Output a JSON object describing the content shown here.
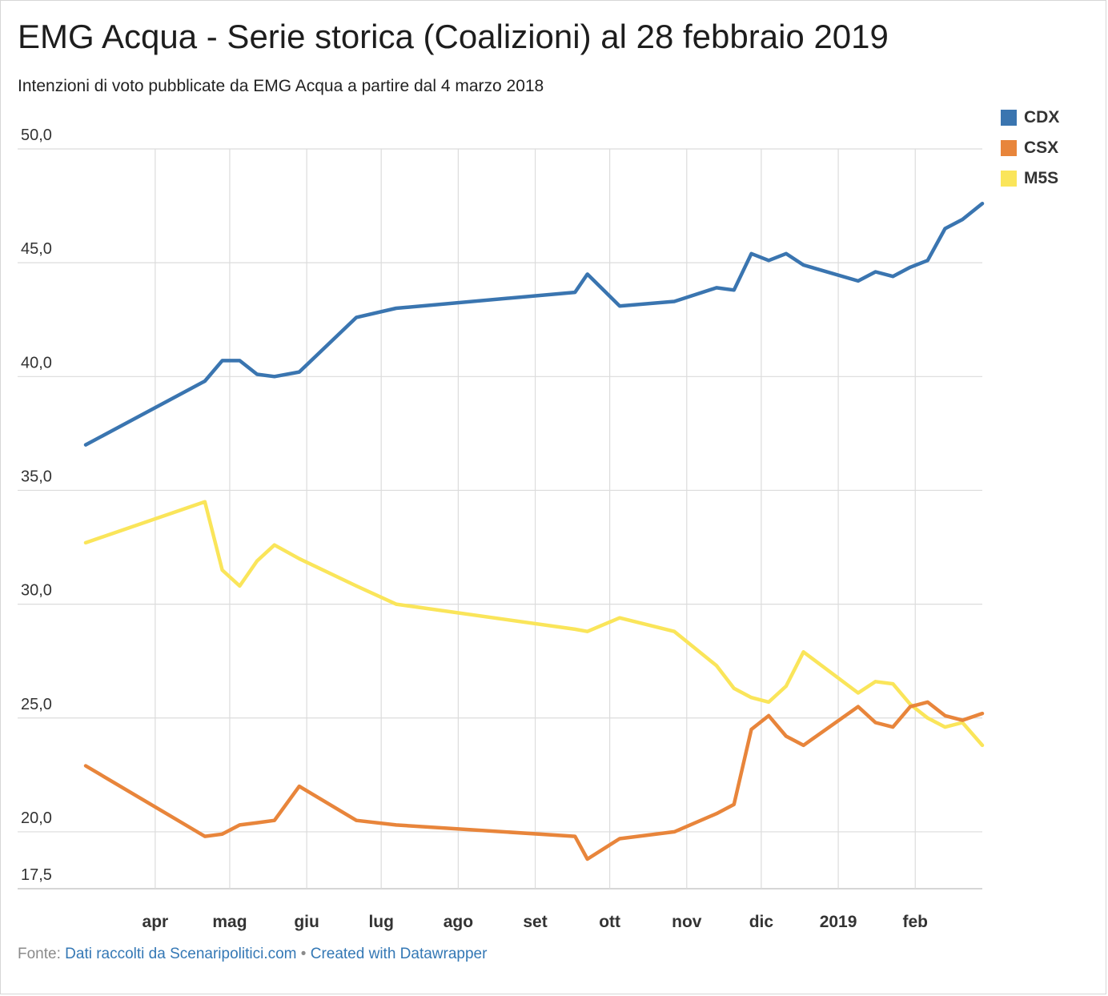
{
  "title": "EMG Acqua - Serie storica (Coalizioni) al 28 febbraio 2019",
  "subtitle": "Intenzioni di voto pubblicate da EMG Acqua a partire dal 4 marzo 2018",
  "footer": {
    "source_prefix": "Fonte:",
    "source_link": "Dati raccolti da Scenaripolitici.com",
    "separator": "•",
    "credit": "Created with Datawrapper"
  },
  "chart_data": {
    "type": "line",
    "y_ticks": [
      50.0,
      45.0,
      40.0,
      35.0,
      30.0,
      25.0,
      20.0,
      17.5
    ],
    "y_tick_labels": [
      "50,0",
      "45,0",
      "40,0",
      "35,0",
      "30,0",
      "25,0",
      "20,0",
      "17,5"
    ],
    "ylim": [
      17.5,
      50.0
    ],
    "x_ticks": [
      "2018-04-01",
      "2018-05-01",
      "2018-06-01",
      "2018-07-01",
      "2018-08-01",
      "2018-09-01",
      "2018-10-01",
      "2018-11-01",
      "2018-12-01",
      "2019-01-01",
      "2019-02-01"
    ],
    "x_tick_labels": [
      "apr",
      "mag",
      "giu",
      "lug",
      "ago",
      "set",
      "ott",
      "nov",
      "dic",
      "2019",
      "feb"
    ],
    "xlim": [
      "2018-03-04",
      "2019-02-28"
    ],
    "grid": true,
    "legend_position": "top-right",
    "series": [
      {
        "name": "CDX",
        "color": "#3a75b0",
        "x": [
          "2018-03-04",
          "2018-04-21",
          "2018-04-28",
          "2018-05-05",
          "2018-05-12",
          "2018-05-19",
          "2018-05-29",
          "2018-06-21",
          "2018-07-07",
          "2018-09-17",
          "2018-09-22",
          "2018-10-05",
          "2018-10-27",
          "2018-11-13",
          "2018-11-20",
          "2018-11-27",
          "2018-12-04",
          "2018-12-11",
          "2018-12-18",
          "2019-01-09",
          "2019-01-16",
          "2019-01-23",
          "2019-01-30",
          "2019-02-06",
          "2019-02-13",
          "2019-02-20",
          "2019-02-28"
        ],
        "y": [
          37.0,
          39.8,
          40.7,
          40.7,
          40.1,
          40.0,
          40.2,
          42.6,
          43.0,
          43.7,
          44.5,
          43.1,
          43.3,
          43.9,
          43.8,
          45.4,
          45.1,
          45.4,
          44.9,
          44.2,
          44.6,
          44.4,
          44.8,
          45.1,
          46.5,
          46.9,
          47.6
        ]
      },
      {
        "name": "CSX",
        "color": "#e8853b",
        "x": [
          "2018-03-04",
          "2018-04-21",
          "2018-04-28",
          "2018-05-05",
          "2018-05-12",
          "2018-05-19",
          "2018-05-29",
          "2018-06-21",
          "2018-07-07",
          "2018-09-17",
          "2018-09-22",
          "2018-10-05",
          "2018-10-27",
          "2018-11-13",
          "2018-11-20",
          "2018-11-27",
          "2018-12-04",
          "2018-12-11",
          "2018-12-18",
          "2019-01-09",
          "2019-01-16",
          "2019-01-23",
          "2019-01-30",
          "2019-02-06",
          "2019-02-13",
          "2019-02-20",
          "2019-02-28"
        ],
        "y": [
          22.9,
          19.8,
          19.9,
          20.3,
          20.4,
          20.5,
          22.0,
          20.5,
          20.3,
          19.8,
          18.8,
          19.7,
          20.0,
          20.8,
          21.2,
          24.5,
          25.1,
          24.2,
          23.8,
          25.5,
          24.8,
          24.6,
          25.5,
          25.7,
          25.1,
          24.9,
          25.2
        ]
      },
      {
        "name": "M5S",
        "color": "#fae55a",
        "x": [
          "2018-03-04",
          "2018-04-21",
          "2018-04-28",
          "2018-05-05",
          "2018-05-12",
          "2018-05-19",
          "2018-05-29",
          "2018-06-21",
          "2018-07-07",
          "2018-09-17",
          "2018-09-22",
          "2018-10-05",
          "2018-10-27",
          "2018-11-13",
          "2018-11-20",
          "2018-11-27",
          "2018-12-04",
          "2018-12-11",
          "2018-12-18",
          "2019-01-09",
          "2019-01-16",
          "2019-01-23",
          "2019-01-30",
          "2019-02-06",
          "2019-02-13",
          "2019-02-20",
          "2019-02-28"
        ],
        "y": [
          32.7,
          34.5,
          31.5,
          30.8,
          31.9,
          32.6,
          32.0,
          30.8,
          30.0,
          28.9,
          28.8,
          29.4,
          28.8,
          27.3,
          26.3,
          25.9,
          25.7,
          26.4,
          27.9,
          26.1,
          26.6,
          26.5,
          25.6,
          25.0,
          24.6,
          24.8,
          23.8
        ]
      }
    ]
  }
}
